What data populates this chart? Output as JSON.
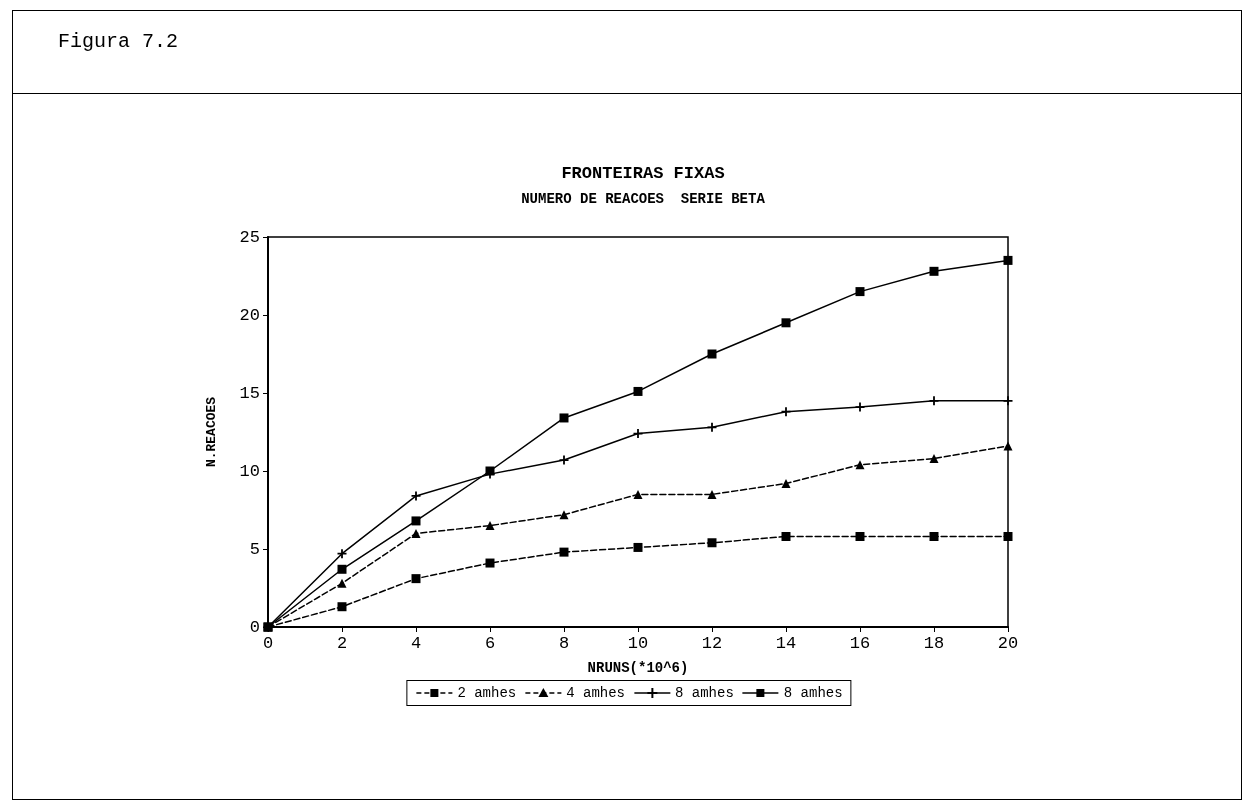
{
  "chart_data": {
    "type": "line",
    "title": "FRONTEIRAS FIXAS",
    "subtitle": "NUMERO DE REACOES  SERIE BETA",
    "annotations": [
      "Figura 7.2"
    ],
    "xlabel": "NRUNS(*10^6)",
    "ylabel": "N.REACOES",
    "x": [
      0,
      2,
      4,
      6,
      8,
      10,
      12,
      14,
      16,
      18,
      20
    ],
    "xlim": [
      0,
      20
    ],
    "xticks": [
      0,
      2,
      4,
      6,
      8,
      10,
      12,
      14,
      16,
      18,
      20
    ],
    "ylim": [
      0,
      25
    ],
    "yticks": [
      0,
      5,
      10,
      15,
      20,
      25
    ],
    "grid": false,
    "legend": "bottom",
    "series": [
      {
        "name": "2 amhes",
        "color": "#000000",
        "marker": "square",
        "line_style": "dashed",
        "values": [
          0,
          1.3,
          3.1,
          4.1,
          4.8,
          5.1,
          5.4,
          5.8,
          5.8,
          5.8,
          5.8
        ]
      },
      {
        "name": "4 amhes",
        "color": "#000000",
        "marker": "triangle",
        "line_style": "dashed",
        "values": [
          0,
          2.8,
          6,
          6.5,
          7.2,
          8.5,
          8.5,
          9.2,
          10.4,
          10.8,
          11.6
        ]
      },
      {
        "name": "8 amhes",
        "color": "#000000",
        "marker": "cross",
        "line_style": "solid",
        "values": [
          0,
          4.7,
          8.4,
          9.8,
          10.7,
          12.4,
          12.8,
          13.8,
          14.1,
          14.5,
          14.5
        ]
      },
      {
        "name": "8 amhes",
        "color": "#000000",
        "marker": "square",
        "line_style": "solid",
        "values": [
          0,
          3.7,
          6.8,
          10,
          13.4,
          15.1,
          17.5,
          19.5,
          21.5,
          22.8,
          23.5
        ]
      }
    ]
  }
}
